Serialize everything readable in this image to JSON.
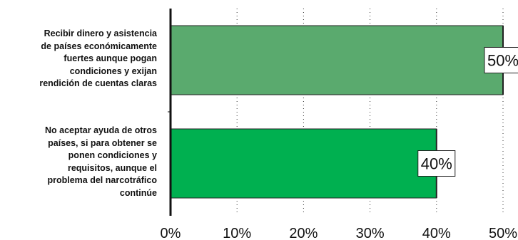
{
  "chart_data": {
    "type": "bar",
    "orientation": "horizontal",
    "categories": [
      "Recibir dinero y asistencia\nde países económicamente\nfuertes aunque pogan\ncondiciones y exijan\nrendición de cuentas claras",
      "No aceptar ayuda de otros\npaíses, si para obtener se\nponen condiciones y\nrequisitos, aunque el\nproblema del narcotráfico\ncontinúe"
    ],
    "values": [
      50,
      40
    ],
    "data_labels": [
      "50%",
      "40%"
    ],
    "bar_colors": [
      "#5aaa6e",
      "#00b050"
    ],
    "xlim": [
      0,
      50
    ],
    "xticks": [
      0,
      10,
      20,
      30,
      40,
      50
    ],
    "xtick_labels": [
      "0%",
      "10%",
      "20%",
      "30%",
      "40%",
      "50%"
    ],
    "grid": "vertical dotted",
    "legend": "none",
    "title": "",
    "xlabel": "",
    "ylabel": ""
  }
}
